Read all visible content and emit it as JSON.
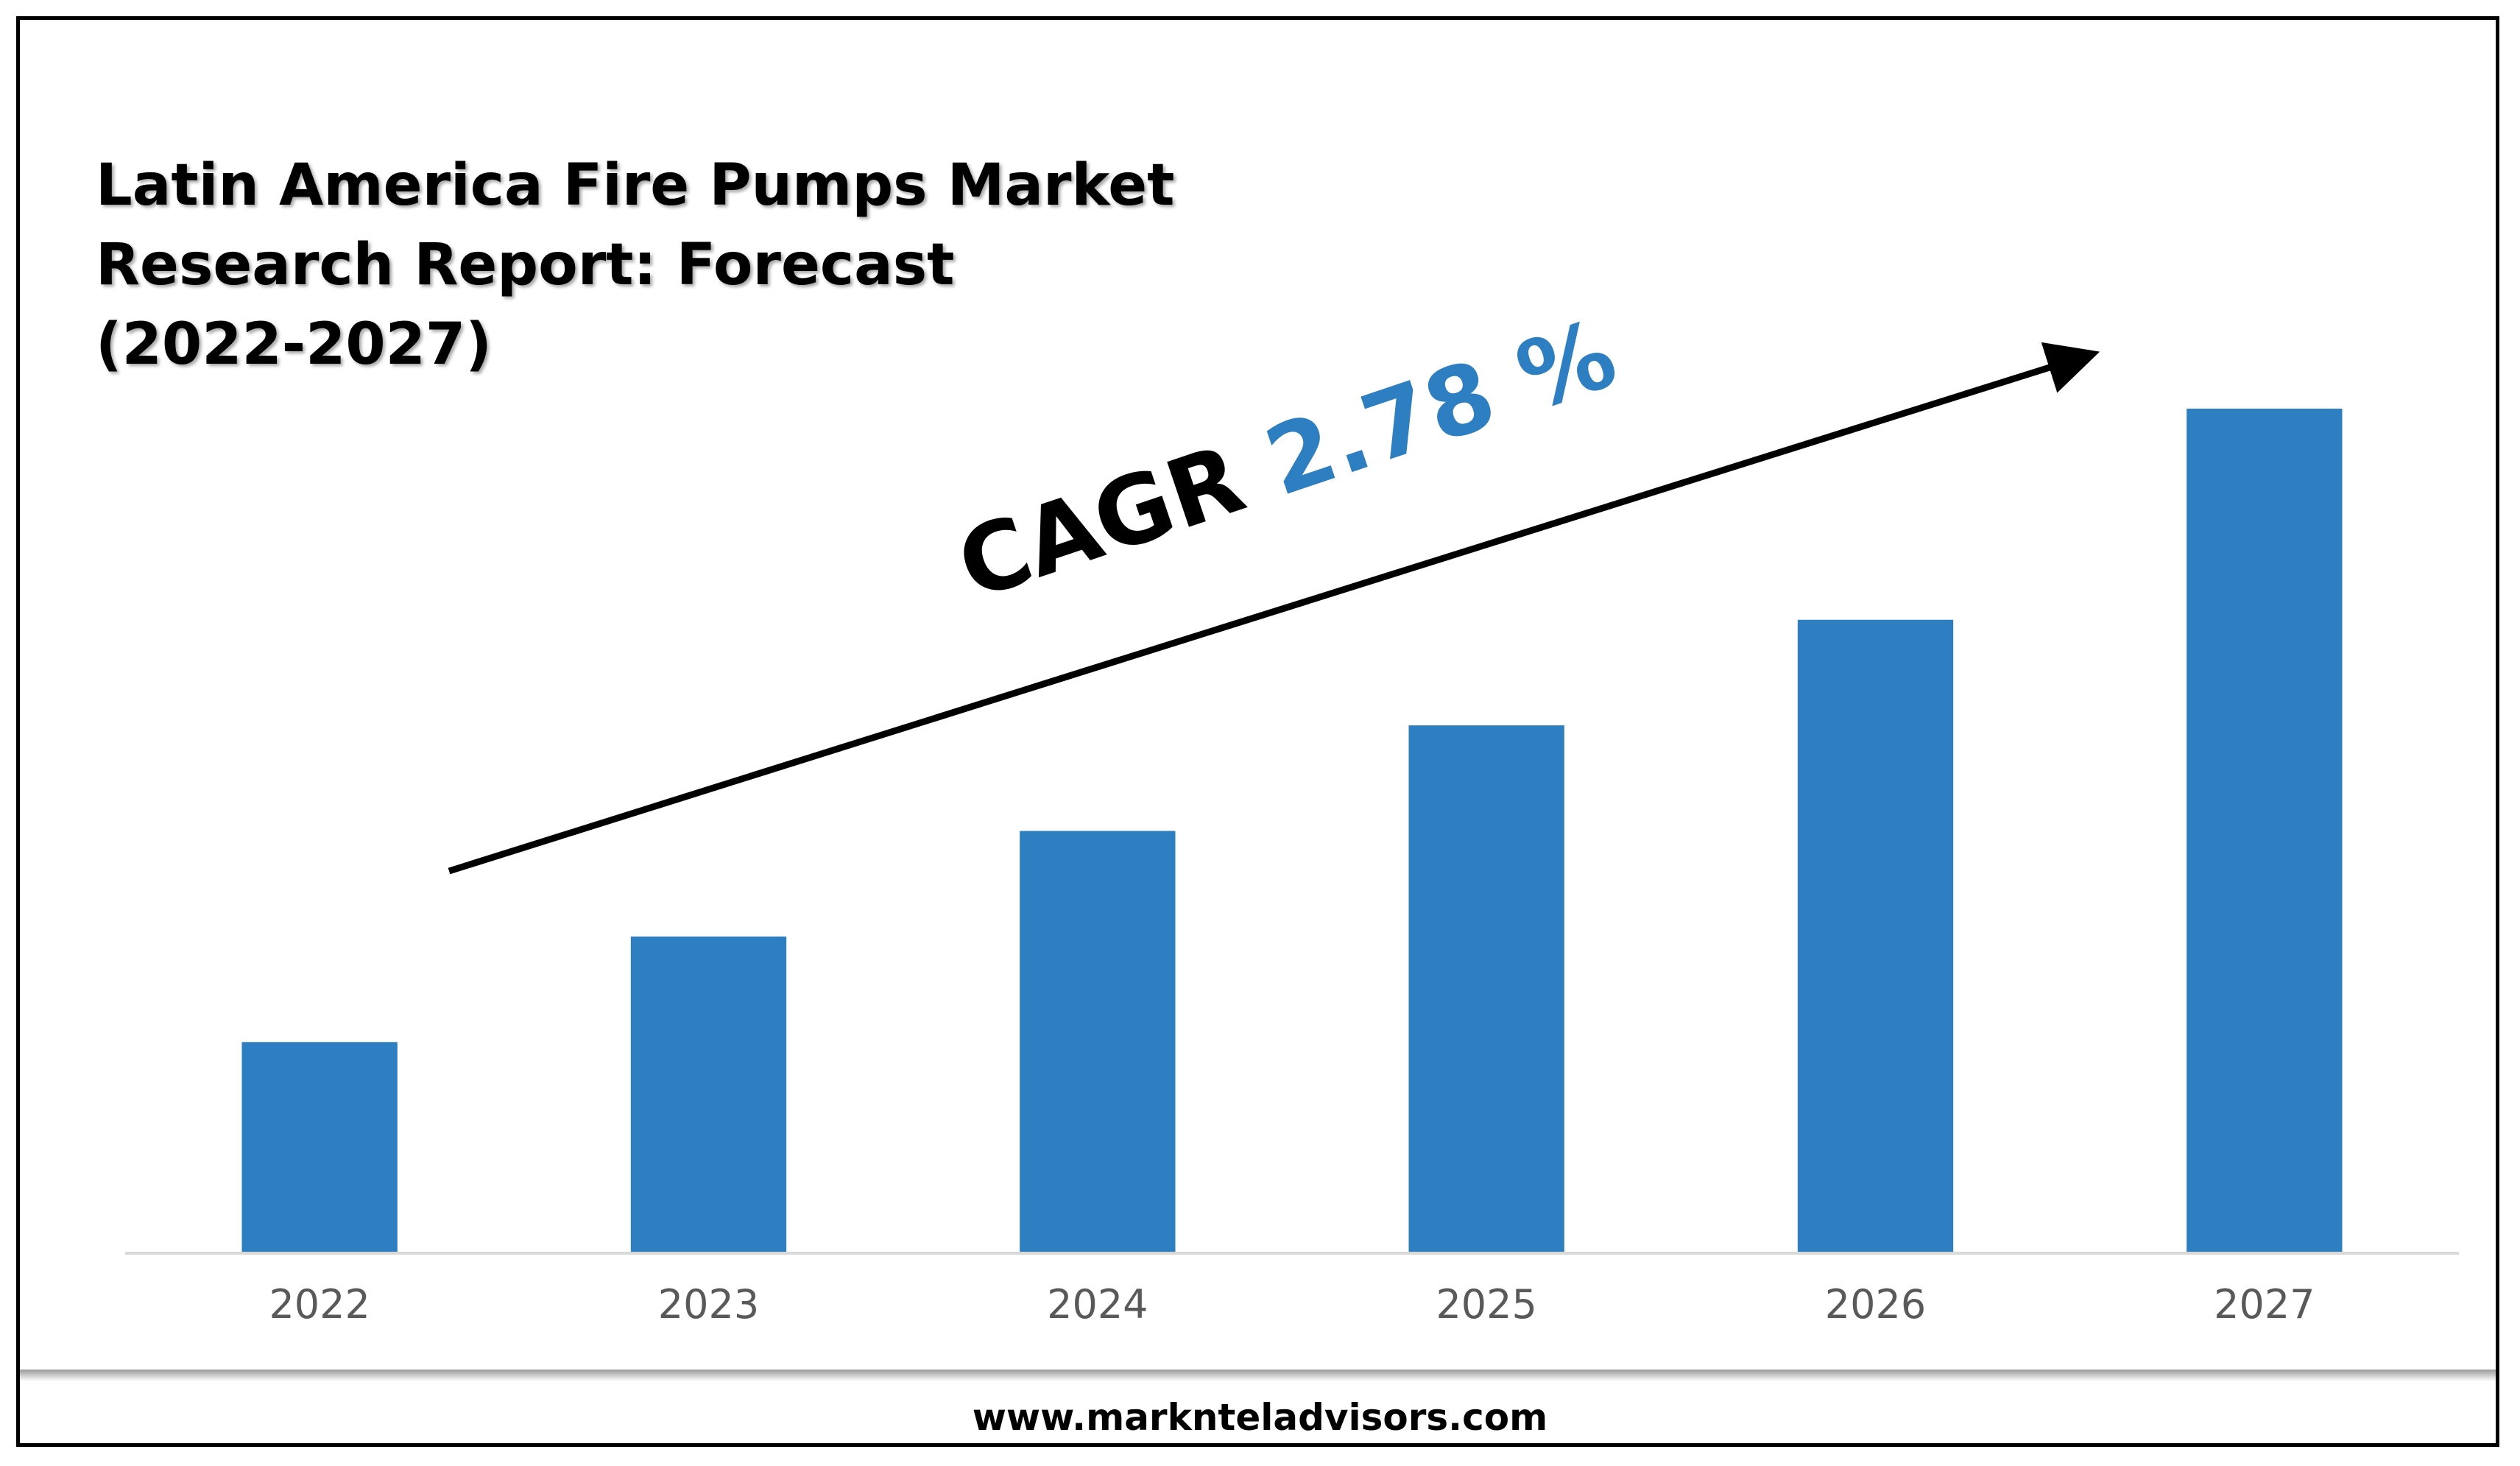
{
  "title_lines": [
    "Latin America Fire Pumps Market",
    "Research Report: Forecast",
    "(2022-2027)"
  ],
  "annotation": {
    "label": "CAGR",
    "value": "2.78 %"
  },
  "footer": {
    "url": "www.marknteladvisors.com"
  },
  "colors": {
    "bar": "#2e7fc1",
    "cagr_value": "#2e7fc1",
    "axis": "#d9d9d9",
    "text": "#000000",
    "tick_text": "#595959"
  },
  "chart_data": {
    "type": "bar",
    "categories": [
      "2022",
      "2023",
      "2024",
      "2025",
      "2026",
      "2027"
    ],
    "values": [
      1.0,
      1.5,
      2.0,
      2.5,
      3.0,
      4.0
    ],
    "ylim": [
      0,
      4.0
    ],
    "y_axis_shown": false,
    "grid": false,
    "legend": "none",
    "trend_arrow": true
  }
}
